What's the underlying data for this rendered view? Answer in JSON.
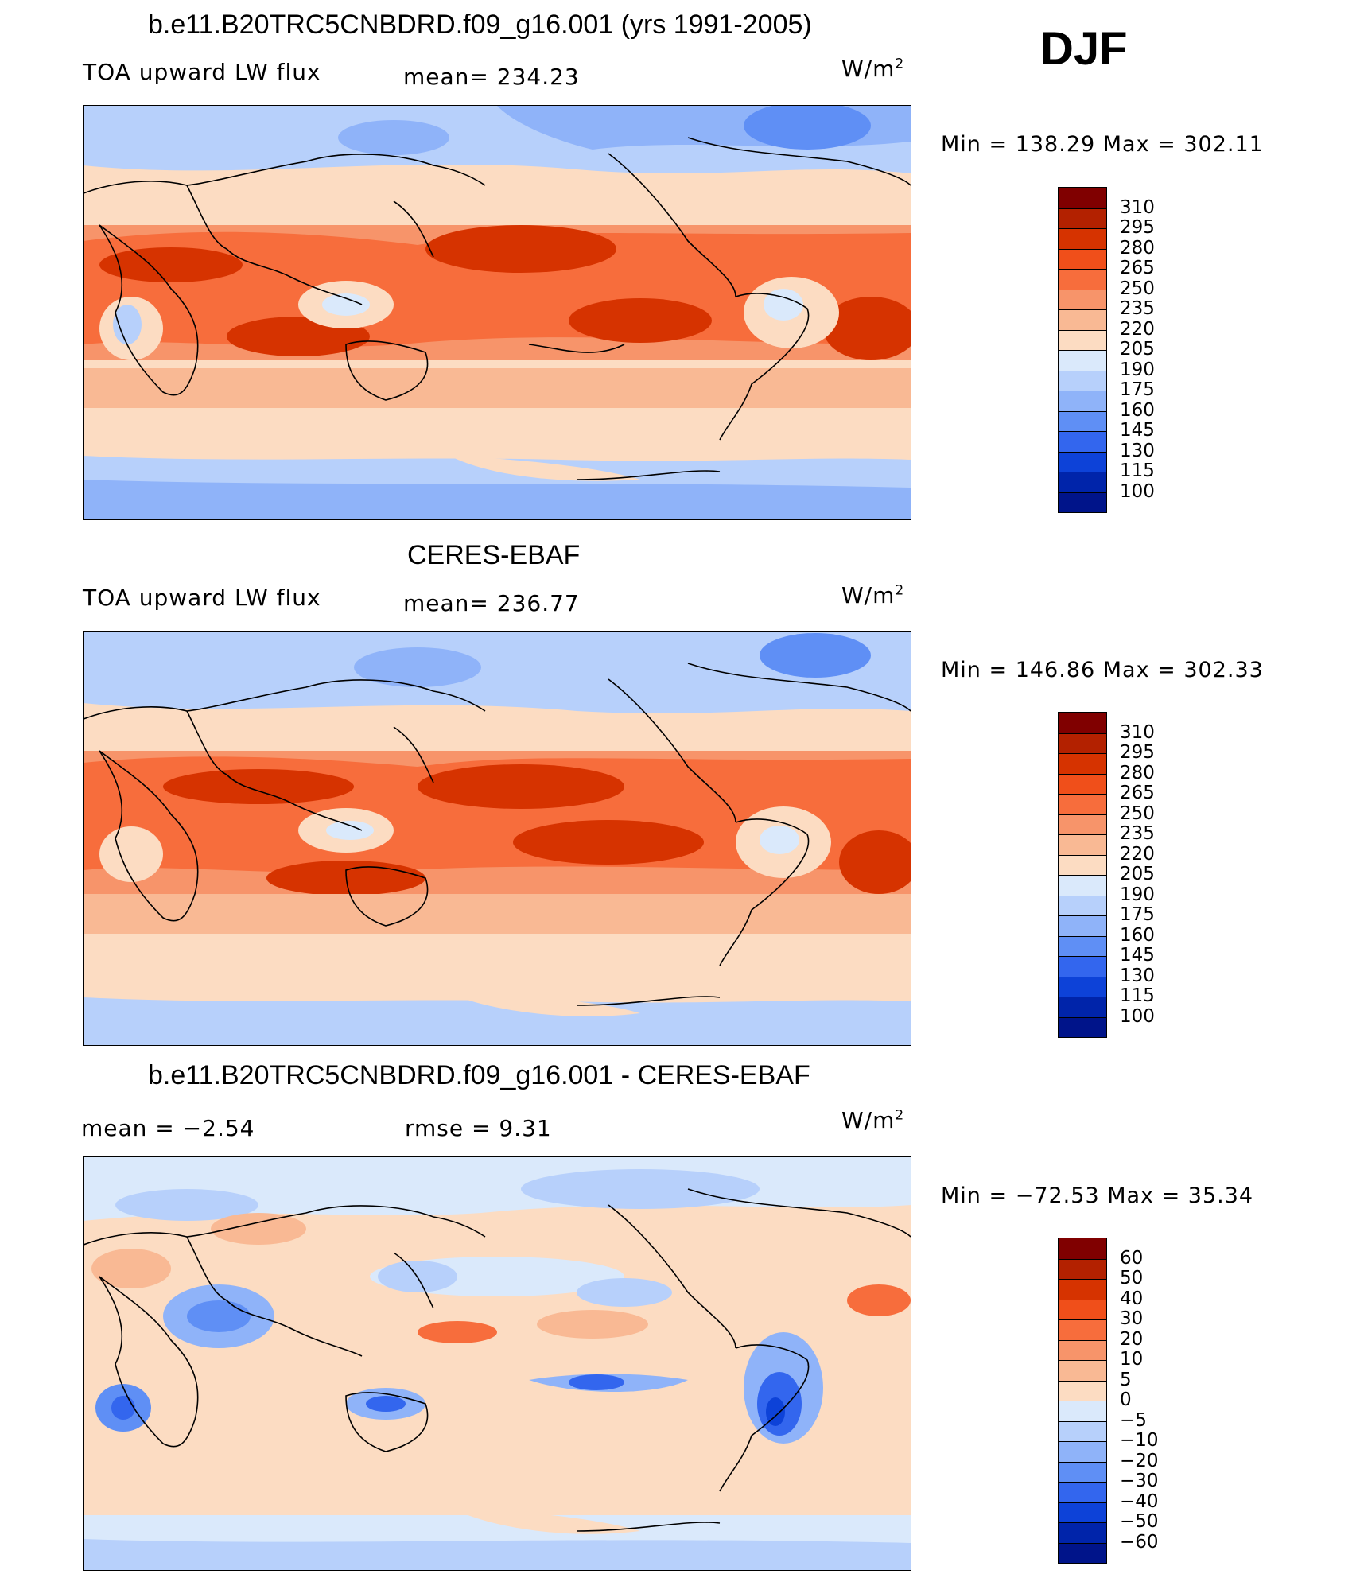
{
  "season": "DJF",
  "units_base": "W/m",
  "units_exp": "2",
  "panels": [
    {
      "title": "b.e11.B20TRC5CNBDRD.f09_g16.001 (yrs 1991-2005)",
      "left_label": "TOA upward LW flux",
      "center_label": "mean= 234.23",
      "minmax": "Min  =  138.29  Max  =  302.11",
      "colorbar": {
        "levels": [
          "310",
          "295",
          "280",
          "265",
          "250",
          "235",
          "220",
          "205",
          "190",
          "175",
          "160",
          "145",
          "130",
          "115",
          "100"
        ],
        "colors": [
          "#800000",
          "#b32100",
          "#d63300",
          "#f04f1a",
          "#f76d3c",
          "#f7946a",
          "#f9b994",
          "#fcdcc2",
          "#dae9fb",
          "#b7d0fb",
          "#8fb3f9",
          "#5f8ff5",
          "#3366ee",
          "#0d42d8",
          "#0024aa",
          "#00148a"
        ]
      }
    },
    {
      "title": "CERES-EBAF",
      "left_label": "TOA upward LW flux",
      "center_label": "mean= 236.77",
      "minmax": "Min  =  146.86  Max  =  302.33",
      "colorbar": {
        "levels": [
          "310",
          "295",
          "280",
          "265",
          "250",
          "235",
          "220",
          "205",
          "190",
          "175",
          "160",
          "145",
          "130",
          "115",
          "100"
        ],
        "colors": [
          "#800000",
          "#b32100",
          "#d63300",
          "#f04f1a",
          "#f76d3c",
          "#f7946a",
          "#f9b994",
          "#fcdcc2",
          "#dae9fb",
          "#b7d0fb",
          "#8fb3f9",
          "#5f8ff5",
          "#3366ee",
          "#0d42d8",
          "#0024aa",
          "#00148a"
        ]
      }
    },
    {
      "title": "b.e11.B20TRC5CNBDRD.f09_g16.001 - CERES-EBAF",
      "left_label": "mean =    −2.54",
      "center_label": "rmse =     9.31",
      "minmax": "Min  =  −72.53  Max  =    35.34",
      "colorbar": {
        "levels": [
          "60",
          "50",
          "40",
          "30",
          "20",
          "10",
          "5",
          "0",
          "−5",
          "−10",
          "−20",
          "−30",
          "−40",
          "−50",
          "−60"
        ],
        "colors": [
          "#800000",
          "#b32100",
          "#d63300",
          "#f04f1a",
          "#f76d3c",
          "#f7946a",
          "#f9b994",
          "#fcdcc2",
          "#dae9fb",
          "#b7d0fb",
          "#8fb3f9",
          "#5f8ff5",
          "#3366ee",
          "#0d42d8",
          "#0024aa",
          "#00148a"
        ]
      }
    }
  ]
}
